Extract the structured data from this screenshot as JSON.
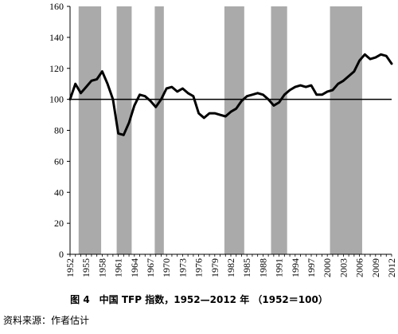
{
  "chart_data": {
    "type": "line",
    "title": "",
    "xlabel": "",
    "ylabel": "",
    "ylim": [
      0,
      160
    ],
    "yticks": [
      0,
      20,
      40,
      60,
      80,
      100,
      120,
      140,
      160
    ],
    "xlim": [
      1952,
      2012
    ],
    "xticks": [
      1952,
      1955,
      1958,
      1961,
      1964,
      1967,
      1970,
      1973,
      1976,
      1979,
      1982,
      1985,
      1988,
      1991,
      1994,
      1997,
      2000,
      2003,
      2006,
      2009,
      2012
    ],
    "grid": false,
    "legend": "none",
    "reference_line": {
      "y": 100
    },
    "shaded_periods": [
      [
        1953.6,
        1957.8
      ],
      [
        1960.7,
        1963.5
      ],
      [
        1967.8,
        1969.5
      ],
      [
        1980.8,
        1984.5
      ],
      [
        1989.5,
        1992.5
      ],
      [
        2000.5,
        2006.5
      ]
    ],
    "series": [
      {
        "x": [
          1952,
          1953,
          1954,
          1955,
          1956,
          1957,
          1958,
          1959,
          1960,
          1961,
          1962,
          1963,
          1964,
          1965,
          1966,
          1967,
          1968,
          1969,
          1970,
          1971,
          1972,
          1973,
          1974,
          1975,
          1976,
          1977,
          1978,
          1979,
          1980,
          1981,
          1982,
          1983,
          1984,
          1985,
          1986,
          1987,
          1988,
          1989,
          1990,
          1991,
          1992,
          1993,
          1994,
          1995,
          1996,
          1997,
          1998,
          1999,
          2000,
          2001,
          2002,
          2003,
          2004,
          2005,
          2006,
          2007,
          2008,
          2009,
          2010,
          2011,
          2012
        ],
        "values": [
          100,
          110,
          104,
          108,
          112,
          113,
          118,
          110,
          100,
          78,
          77,
          85,
          96,
          103,
          102,
          99,
          95,
          100,
          107,
          108,
          105,
          107,
          104,
          102,
          91,
          88,
          91,
          91,
          90,
          89,
          92,
          94,
          99,
          102,
          103,
          104,
          103,
          100,
          96,
          98,
          103,
          106,
          108,
          109,
          108,
          109,
          103,
          103,
          105,
          106,
          110,
          112,
          115,
          118,
          125,
          129,
          126,
          127,
          129,
          128,
          123
        ]
      }
    ]
  },
  "colors": {
    "shade": "#aaaaaa",
    "line": "#000000",
    "axis": "#000000"
  },
  "figure": {
    "caption": "图 4　中国 TFP 指数，1952—2012 年 （1952＝100）",
    "source": "资料来源：作者估计"
  }
}
